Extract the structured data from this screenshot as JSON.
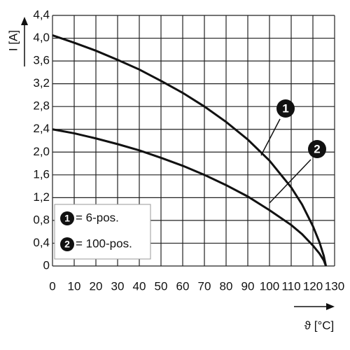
{
  "chart_data": {
    "type": "line",
    "xlabel": "ϑ [°C]",
    "ylabel": "I [A]",
    "xlim": [
      0,
      130
    ],
    "ylim": [
      0,
      4.4
    ],
    "xticks": [
      0,
      10,
      20,
      30,
      40,
      50,
      60,
      70,
      80,
      90,
      100,
      110,
      120,
      130
    ],
    "yticks": [
      0,
      {
        "value": 0.4,
        "label": "0,4"
      },
      {
        "value": 0.8,
        "label": "0,8"
      },
      {
        "value": 1.2,
        "label": "1,2"
      },
      {
        "value": 1.6,
        "label": "1,6"
      },
      {
        "value": 2.0,
        "label": "2,0"
      },
      {
        "value": 2.4,
        "label": "2,4"
      },
      {
        "value": 2.8,
        "label": "2,8"
      },
      {
        "value": 3.2,
        "label": "3,2"
      },
      {
        "value": 3.6,
        "label": "3,6"
      },
      {
        "value": 4.0,
        "label": "4,0"
      },
      {
        "value": 4.4,
        "label": "4,4"
      }
    ],
    "grid": true,
    "x": [
      0,
      10,
      20,
      30,
      40,
      50,
      60,
      70,
      80,
      90,
      100,
      110,
      115,
      120,
      123,
      125,
      126
    ],
    "series": [
      {
        "name": "= 6-pos.",
        "label": "1",
        "color": "#111111",
        "values": [
          4.05,
          3.92,
          3.78,
          3.62,
          3.45,
          3.25,
          3.04,
          2.8,
          2.53,
          2.22,
          1.85,
          1.38,
          1.08,
          0.7,
          0.42,
          0.18,
          0
        ]
      },
      {
        "name": "= 100-pos.",
        "label": "2",
        "color": "#111111",
        "values": [
          2.4,
          2.33,
          2.24,
          2.14,
          2.03,
          1.9,
          1.76,
          1.6,
          1.42,
          1.22,
          0.98,
          0.72,
          0.56,
          0.36,
          0.22,
          0.1,
          0
        ]
      }
    ]
  }
}
